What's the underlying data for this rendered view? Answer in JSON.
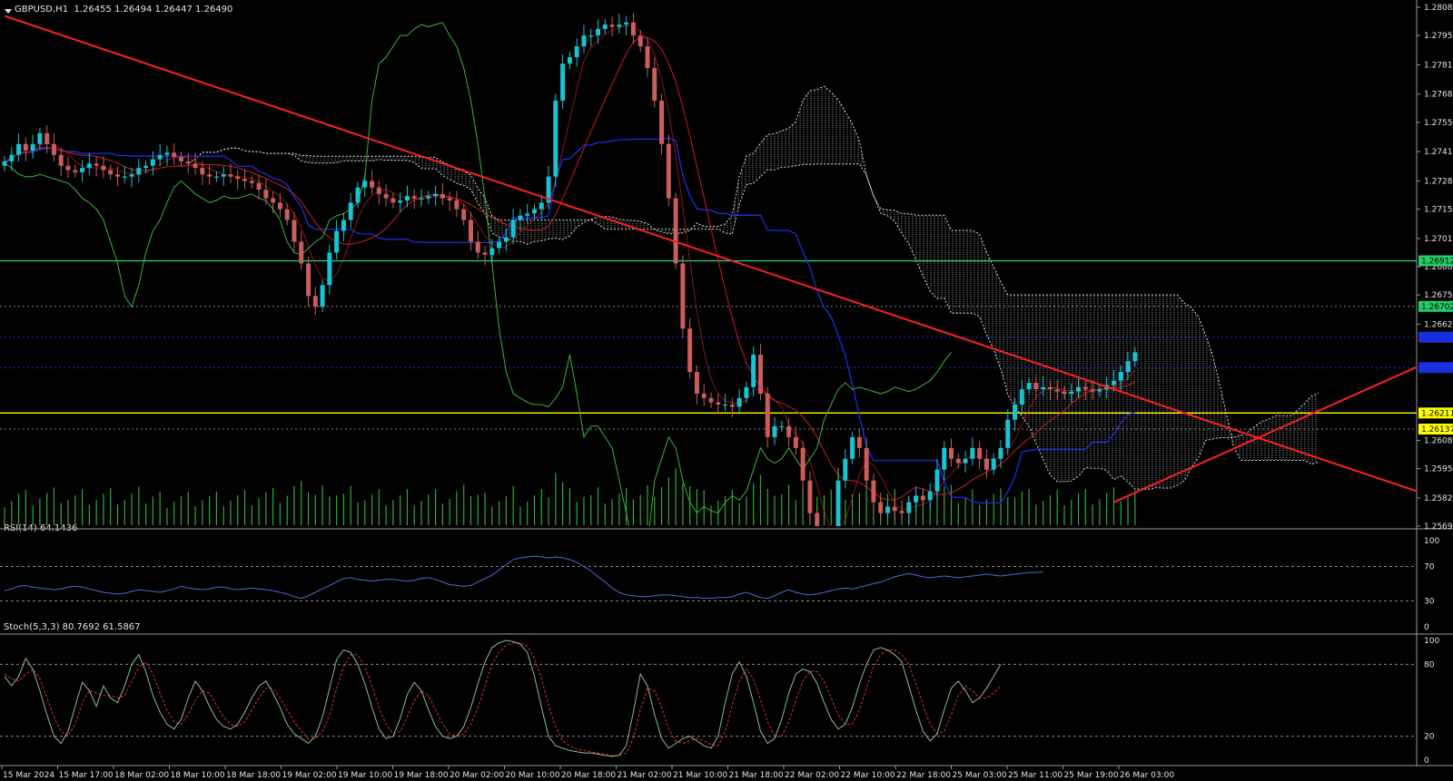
{
  "symbol_header": {
    "symbol": "GBPUSD,H1",
    "ohlc": "1.26455 1.26494 1.26447 1.26490"
  },
  "indicators": {
    "rsi_label": "RSI(14) 64.1436",
    "stoch_label": "Stoch(5,3,3) 80.7692 61.5867"
  },
  "price_badges": [
    {
      "value": "1.26912",
      "color": "#22cc66",
      "text_color": "#000000"
    },
    {
      "value": "1.26702",
      "color": "#22cc66",
      "text_color": "#000000"
    },
    {
      "value": "",
      "color": "#1a2fe0",
      "text_color": "#ffffff"
    },
    {
      "value": "",
      "color": "#1a2fe0",
      "text_color": "#ffffff"
    },
    {
      "value": "1.26211",
      "color": "#ffff00",
      "text_color": "#000000"
    },
    {
      "value": "1.26137",
      "color": "#ffff00",
      "text_color": "#000000"
    }
  ],
  "colors": {
    "bull": "#19c3d3",
    "bear": "#cd5c5c",
    "trendline": "#ff2020",
    "green_level": "#22cc66",
    "yellow_level": "#ffff00",
    "blue_level": "#1a2fe0",
    "kijun": "#1a2fe0",
    "chikou": "#3cb43c",
    "ma": "#cc2020",
    "rsi_line": "#4a6ed8",
    "stoch_main": "#8fbc8f",
    "stoch_signal": "#e03030",
    "volume": "#2fae2f",
    "grid_dash": "#888888"
  },
  "chart_data": [
    {
      "type": "candlestick",
      "name": "GBPUSD,H1",
      "y_ticks": [
        1.2808,
        1.2795,
        1.27815,
        1.2768,
        1.2755,
        1.27415,
        1.2728,
        1.2715,
        1.27015,
        1.26885,
        1.26755,
        1.2662,
        1.26085,
        1.25955,
        1.2582,
        1.2569
      ],
      "ylim": [
        1.2569,
        1.2808
      ],
      "x_labels": [
        "15 Mar 2024",
        "15 Mar 17:00",
        "18 Mar 02:00",
        "18 Mar 10:00",
        "18 Mar 18:00",
        "19 Mar 02:00",
        "19 Mar 10:00",
        "19 Mar 18:00",
        "20 Mar 02:00",
        "20 Mar 10:00",
        "20 Mar 18:00",
        "21 Mar 02:00",
        "21 Mar 10:00",
        "21 Mar 18:00",
        "22 Mar 02:00",
        "22 Mar 10:00",
        "22 Mar 18:00",
        "25 Mar 03:00",
        "25 Mar 11:00",
        "25 Mar 19:00",
        "26 Mar 03:00"
      ],
      "horizontal_levels": [
        {
          "price": 1.26912,
          "style": "solid",
          "color": "green"
        },
        {
          "price": 1.26702,
          "style": "dotted",
          "color": "gray"
        },
        {
          "price": 1.2656,
          "style": "dotted",
          "color": "blue"
        },
        {
          "price": 1.2642,
          "style": "dotted",
          "color": "blue"
        },
        {
          "price": 1.26211,
          "style": "solid",
          "color": "yellow"
        },
        {
          "price": 1.26137,
          "style": "dotted",
          "color": "gray"
        }
      ],
      "trendlines": [
        {
          "from": [
            0,
            1.2804
          ],
          "to": [
            210,
            1.2574
          ],
          "color": "red"
        },
        {
          "from": [
            157,
            1.258
          ],
          "to": [
            210,
            1.2657
          ],
          "color": "red"
        }
      ],
      "closes": [
        1.2737,
        1.274,
        1.2745,
        1.2742,
        1.2745,
        1.275,
        1.2745,
        1.274,
        1.2735,
        1.2733,
        1.2732,
        1.2734,
        1.2736,
        1.2735,
        1.2733,
        1.2731,
        1.273,
        1.273,
        1.2731,
        1.2734,
        1.2735,
        1.2738,
        1.274,
        1.2741,
        1.2739,
        1.2737,
        1.2736,
        1.2734,
        1.2731,
        1.273,
        1.273,
        1.2731,
        1.273,
        1.2729,
        1.2728,
        1.2727,
        1.2724,
        1.272,
        1.2718,
        1.2715,
        1.271,
        1.27,
        1.269,
        1.2675,
        1.267,
        1.268,
        1.2695,
        1.2705,
        1.271,
        1.2718,
        1.2725,
        1.2728,
        1.2725,
        1.2722,
        1.272,
        1.2718,
        1.2719,
        1.2721,
        1.272,
        1.272,
        1.2721,
        1.2722,
        1.272,
        1.2719,
        1.2715,
        1.271,
        1.27,
        1.2695,
        1.2694,
        1.2697,
        1.27,
        1.2702,
        1.271,
        1.2712,
        1.2713,
        1.2715,
        1.2718,
        1.273,
        1.2765,
        1.2782,
        1.2785,
        1.279,
        1.2795,
        1.2795,
        1.2798,
        1.28,
        1.2799,
        1.28,
        1.2801,
        1.2795,
        1.279,
        1.278,
        1.2765,
        1.2745,
        1.272,
        1.269,
        1.266,
        1.264,
        1.263,
        1.2628,
        1.2626,
        1.2625,
        1.2625,
        1.2624,
        1.2628,
        1.2633,
        1.2648,
        1.263,
        1.261,
        1.2615,
        1.2615,
        1.261,
        1.2605,
        1.259,
        1.2575,
        1.256,
        1.255,
        1.256,
        1.259,
        1.26,
        1.261,
        1.2605,
        1.259,
        1.258,
        1.2575,
        1.2578,
        1.2576,
        1.2575,
        1.258,
        1.2583,
        1.2581,
        1.2585,
        1.2595,
        1.2605,
        1.26,
        1.2598,
        1.26,
        1.2605,
        1.26,
        1.2595,
        1.26,
        1.2605,
        1.2618,
        1.2625,
        1.2632,
        1.2635,
        1.2632,
        1.2633,
        1.2632,
        1.2631,
        1.263,
        1.2631,
        1.2633,
        1.2632,
        1.2631,
        1.2632,
        1.2634,
        1.2636,
        1.264,
        1.2645,
        1.2649
      ]
    },
    {
      "type": "line",
      "name": "RSI(14) 64.1436",
      "ylim": [
        0,
        100
      ],
      "y_ticks": [
        100,
        70,
        30,
        0
      ],
      "values": [
        42,
        44,
        47,
        48,
        46,
        45,
        44,
        43,
        44,
        46,
        47,
        46,
        44,
        42,
        40,
        39,
        38,
        39,
        41,
        43,
        42,
        41,
        40,
        42,
        44,
        47,
        45,
        44,
        43,
        44,
        46,
        46,
        44,
        43,
        44,
        45,
        44,
        43,
        42,
        40,
        38,
        35,
        33,
        36,
        40,
        44,
        48,
        52,
        56,
        57,
        55,
        54,
        53,
        54,
        55,
        55,
        54,
        53,
        54,
        56,
        57,
        55,
        52,
        49,
        48,
        47,
        48,
        52,
        56,
        60,
        66,
        72,
        78,
        80,
        81,
        82,
        81,
        80,
        81,
        80,
        78,
        75,
        70,
        65,
        58,
        52,
        45,
        40,
        37,
        36,
        35,
        35,
        36,
        37,
        37,
        36,
        35,
        34,
        34,
        33,
        33,
        34,
        34,
        35,
        38,
        40,
        37,
        34,
        33,
        36,
        40,
        43,
        40,
        38,
        37,
        38,
        40,
        42,
        44,
        45,
        44,
        46,
        48,
        50,
        52,
        55,
        58,
        60,
        62,
        60,
        58,
        57,
        58,
        59,
        58,
        57,
        58,
        59,
        60,
        61,
        60,
        59,
        60,
        61,
        62,
        63,
        63,
        64
      ]
    },
    {
      "type": "line",
      "name": "Stoch(5,3,3) 80.7692 61.5867",
      "ylim": [
        0,
        100
      ],
      "y_ticks": [
        100,
        80,
        20,
        0
      ],
      "series": [
        {
          "name": "main",
          "values": [
            70,
            62,
            70,
            85,
            76,
            58,
            38,
            20,
            14,
            24,
            45,
            65,
            58,
            45,
            62,
            52,
            48,
            62,
            80,
            88,
            74,
            54,
            40,
            30,
            26,
            34,
            52,
            66,
            58,
            45,
            34,
            28,
            26,
            30,
            40,
            52,
            62,
            66,
            56,
            44,
            30,
            22,
            18,
            14,
            20,
            36,
            60,
            84,
            92,
            90,
            80,
            64,
            44,
            26,
            18,
            20,
            35,
            55,
            65,
            58,
            42,
            28,
            20,
            18,
            20,
            28,
            44,
            64,
            82,
            94,
            98,
            100,
            99,
            97,
            90,
            70,
            44,
            20,
            12,
            10,
            8,
            7,
            6,
            6,
            5,
            4,
            3,
            4,
            12,
            40,
            72,
            62,
            38,
            18,
            10,
            14,
            18,
            20,
            16,
            12,
            10,
            20,
            48,
            72,
            82,
            70,
            48,
            24,
            14,
            18,
            34,
            56,
            72,
            76,
            74,
            64,
            48,
            34,
            26,
            30,
            44,
            64,
            80,
            92,
            94,
            92,
            88,
            82,
            62,
            42,
            24,
            16,
            22,
            42,
            60,
            66,
            58,
            48,
            52,
            60,
            70,
            80
          ]
        },
        {
          "name": "signal",
          "values": [
            72,
            68,
            66,
            72,
            76,
            68,
            52,
            36,
            24,
            20,
            30,
            48,
            58,
            56,
            54,
            54,
            52,
            54,
            66,
            78,
            82,
            72,
            56,
            42,
            32,
            30,
            38,
            50,
            58,
            56,
            46,
            36,
            30,
            28,
            32,
            42,
            52,
            60,
            60,
            52,
            42,
            32,
            24,
            18,
            18,
            24,
            38,
            60,
            78,
            88,
            88,
            78,
            62,
            44,
            30,
            22,
            24,
            36,
            50,
            58,
            54,
            42,
            30,
            22,
            20,
            22,
            30,
            44,
            62,
            80,
            90,
            96,
            98,
            98,
            95,
            85,
            68,
            46,
            28,
            16,
            12,
            9,
            8,
            7,
            6,
            5,
            4,
            4,
            6,
            18,
            42,
            60,
            58,
            44,
            26,
            16,
            14,
            16,
            18,
            16,
            13,
            12,
            24,
            46,
            66,
            76,
            68,
            50,
            32,
            20,
            20,
            32,
            50,
            66,
            74,
            74,
            66,
            52,
            38,
            30,
            30,
            42,
            60,
            78,
            88,
            92,
            92,
            88,
            80,
            64,
            46,
            30,
            22,
            24,
            38,
            54,
            62,
            58,
            52,
            52,
            56,
            62
          ]
        }
      ]
    }
  ]
}
